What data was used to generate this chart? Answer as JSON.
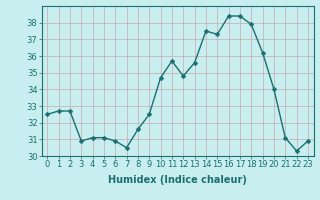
{
  "x": [
    0,
    1,
    2,
    3,
    4,
    5,
    6,
    7,
    8,
    9,
    10,
    11,
    12,
    13,
    14,
    15,
    16,
    17,
    18,
    19,
    20,
    21,
    22,
    23
  ],
  "y": [
    32.5,
    32.7,
    32.7,
    30.9,
    31.1,
    31.1,
    30.9,
    30.5,
    31.6,
    32.5,
    34.7,
    35.7,
    34.8,
    35.6,
    37.5,
    37.3,
    38.4,
    38.4,
    37.9,
    36.2,
    34.0,
    31.1,
    30.3,
    30.9
  ],
  "line_color": "#1a7070",
  "marker": "D",
  "markersize": 2.5,
  "linewidth": 1.0,
  "bg_color": "#c8eef0",
  "grid_color": "#c8a8b0",
  "xlabel": "Humidex (Indice chaleur)",
  "ylabel": "",
  "ylim": [
    30,
    39
  ],
  "xlim": [
    -0.5,
    23.5
  ],
  "yticks": [
    30,
    31,
    32,
    33,
    34,
    35,
    36,
    37,
    38
  ],
  "xticks": [
    0,
    1,
    2,
    3,
    4,
    5,
    6,
    7,
    8,
    9,
    10,
    11,
    12,
    13,
    14,
    15,
    16,
    17,
    18,
    19,
    20,
    21,
    22,
    23
  ],
  "tick_color": "#1a7070",
  "label_fontsize": 7,
  "tick_fontsize": 6
}
